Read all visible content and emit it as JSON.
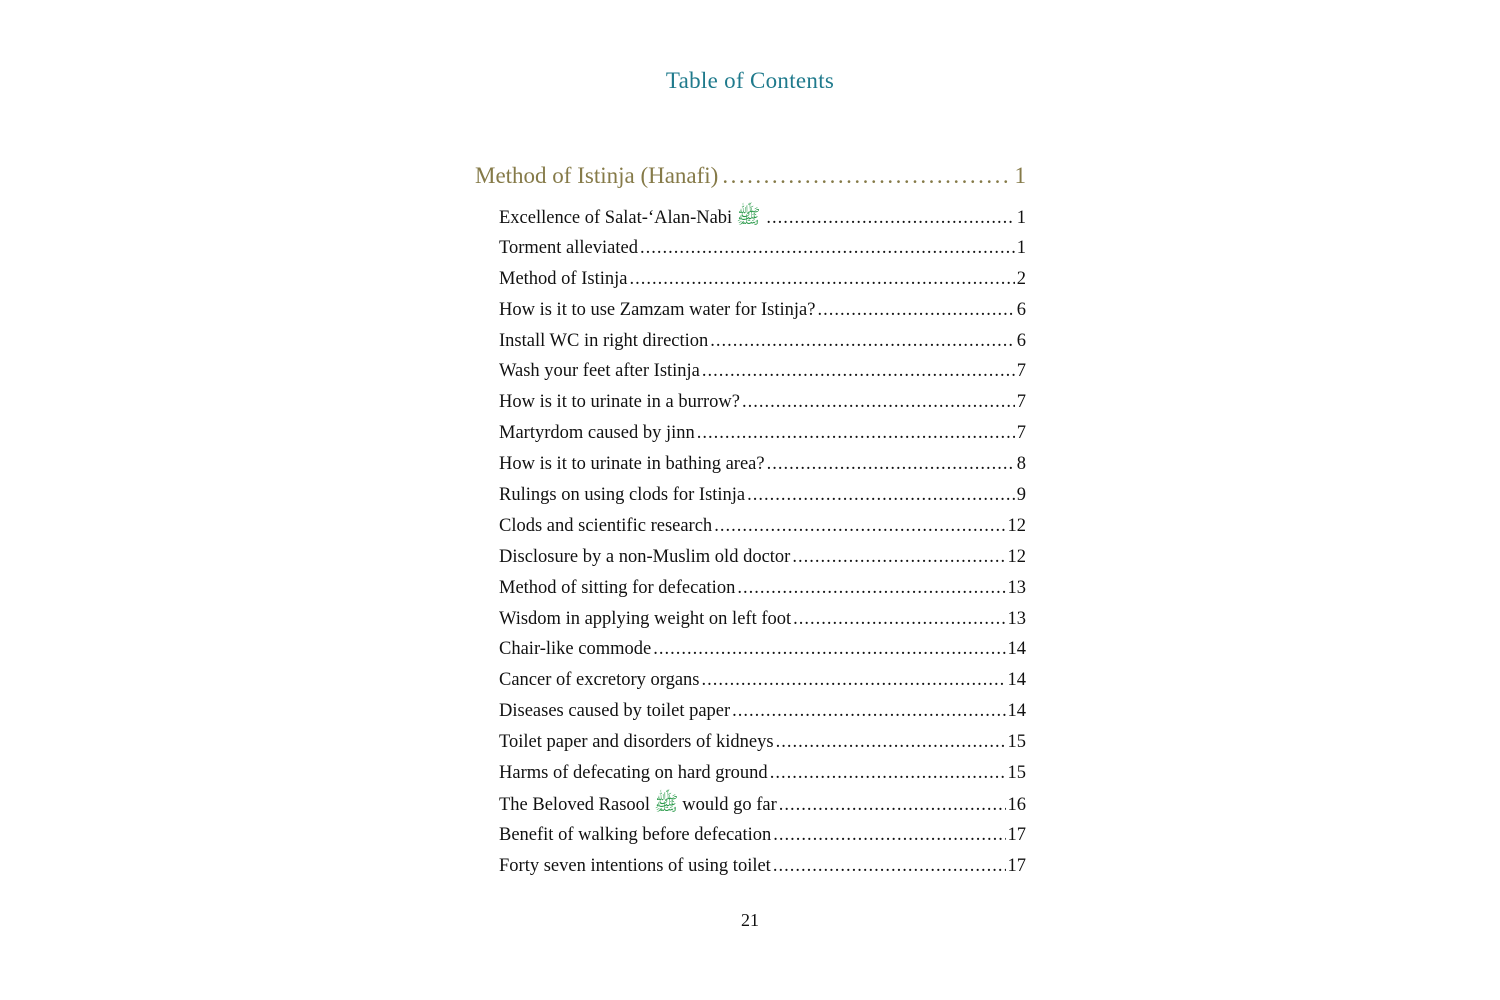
{
  "title": "Table of Contents",
  "chapter": {
    "label": "Method of Istinja (Hanafi)",
    "page": "1"
  },
  "entries": [
    {
      "before": "Excellence of Salat-‘Alan-Nabi",
      "icon": "salawat-calligraphy-icon",
      "after": "",
      "page": "1"
    },
    {
      "before": "Torment alleviated",
      "page": "1"
    },
    {
      "before": "Method of Istinja",
      "page": "2"
    },
    {
      "before": "How is it to use Zamzam water for Istinja?",
      "page": "6"
    },
    {
      "before": "Install WC in right direction",
      "page": "6"
    },
    {
      "before": "Wash your feet after Istinja",
      "page": "7"
    },
    {
      "before": "How is it to urinate in a burrow?",
      "page": "7"
    },
    {
      "before": "Martyrdom caused by jinn",
      "page": "7"
    },
    {
      "before": "How is it to urinate in bathing area?",
      "page": "8"
    },
    {
      "before": "Rulings on using clods for Istinja",
      "page": "9"
    },
    {
      "before": "Clods and scientific research",
      "page": "12"
    },
    {
      "before": "Disclosure by a non-Muslim old doctor",
      "page": "12"
    },
    {
      "before": "Method of sitting for defecation",
      "page": "13"
    },
    {
      "before": "Wisdom in applying weight on left foot",
      "page": "13"
    },
    {
      "before": "Chair-like commode",
      "page": "14"
    },
    {
      "before": "Cancer of excretory organs",
      "page": "14"
    },
    {
      "before": "Diseases caused by toilet paper",
      "page": "14"
    },
    {
      "before": "Toilet paper and disorders of kidneys",
      "page": "15"
    },
    {
      "before": "Harms of defecating on hard ground",
      "page": "15"
    },
    {
      "before": "The Beloved Rasool",
      "icon": "salawat-calligraphy-icon",
      "after": "would go far",
      "page": "16"
    },
    {
      "before": "Benefit of walking before defecation",
      "page": "17"
    },
    {
      "before": "Forty seven intentions of using toilet",
      "page": "17"
    }
  ],
  "page_number": "21",
  "colors": {
    "title": "#1f7a8c",
    "chapter": "#857a48",
    "salawat": "#2a9a4a"
  }
}
